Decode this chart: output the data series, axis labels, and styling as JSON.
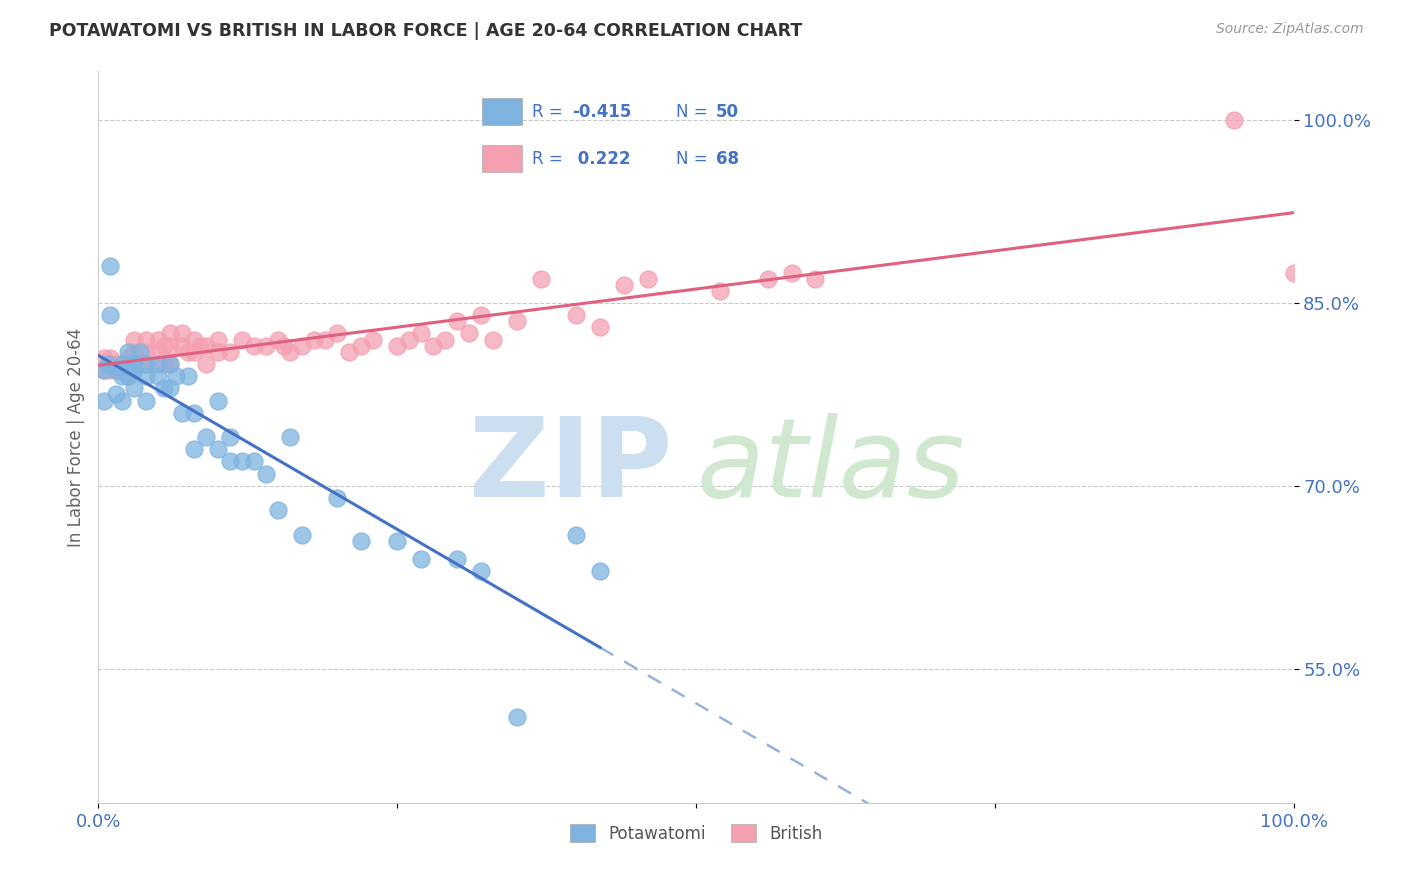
{
  "title": "POTAWATOMI VS BRITISH IN LABOR FORCE | AGE 20-64 CORRELATION CHART",
  "source": "Source: ZipAtlas.com",
  "ylabel": "In Labor Force | Age 20-64",
  "xlim": [
    0,
    1
  ],
  "ylim": [
    0.44,
    1.04
  ],
  "yticks": [
    0.55,
    0.7,
    0.85,
    1.0
  ],
  "ytick_labels": [
    "55.0%",
    "70.0%",
    "85.0%",
    "100.0%"
  ],
  "xticks": [
    0.0,
    0.25,
    0.5,
    0.75,
    1.0
  ],
  "xtick_labels": [
    "0.0%",
    "",
    "",
    "",
    "100.0%"
  ],
  "color_potawatomi": "#7eb3e0",
  "color_british": "#f4a0b0",
  "color_line_potawatomi": "#4472c4",
  "color_line_british": "#e06080",
  "background_color": "#ffffff",
  "potawatomi_x": [
    0.005,
    0.005,
    0.008,
    0.01,
    0.01,
    0.015,
    0.015,
    0.02,
    0.02,
    0.02,
    0.025,
    0.025,
    0.025,
    0.03,
    0.03,
    0.03,
    0.035,
    0.04,
    0.04,
    0.04,
    0.05,
    0.05,
    0.055,
    0.06,
    0.06,
    0.065,
    0.07,
    0.075,
    0.08,
    0.08,
    0.09,
    0.1,
    0.1,
    0.11,
    0.11,
    0.12,
    0.13,
    0.14,
    0.15,
    0.16,
    0.17,
    0.2,
    0.22,
    0.25,
    0.27,
    0.3,
    0.32,
    0.35,
    0.4,
    0.42
  ],
  "potawatomi_y": [
    0.795,
    0.77,
    0.8,
    0.88,
    0.84,
    0.795,
    0.775,
    0.8,
    0.79,
    0.77,
    0.81,
    0.8,
    0.79,
    0.8,
    0.795,
    0.78,
    0.81,
    0.8,
    0.79,
    0.77,
    0.8,
    0.79,
    0.78,
    0.8,
    0.78,
    0.79,
    0.76,
    0.79,
    0.76,
    0.73,
    0.74,
    0.77,
    0.73,
    0.74,
    0.72,
    0.72,
    0.72,
    0.71,
    0.68,
    0.74,
    0.66,
    0.69,
    0.655,
    0.655,
    0.64,
    0.64,
    0.63,
    0.51,
    0.66,
    0.63
  ],
  "british_x": [
    0.005,
    0.005,
    0.01,
    0.01,
    0.015,
    0.015,
    0.02,
    0.02,
    0.025,
    0.025,
    0.03,
    0.03,
    0.03,
    0.04,
    0.04,
    0.04,
    0.05,
    0.05,
    0.055,
    0.055,
    0.06,
    0.06,
    0.06,
    0.07,
    0.07,
    0.075,
    0.08,
    0.08,
    0.085,
    0.09,
    0.09,
    0.1,
    0.1,
    0.11,
    0.12,
    0.13,
    0.14,
    0.15,
    0.155,
    0.16,
    0.17,
    0.18,
    0.19,
    0.2,
    0.21,
    0.22,
    0.23,
    0.25,
    0.26,
    0.27,
    0.28,
    0.29,
    0.3,
    0.31,
    0.32,
    0.33,
    0.35,
    0.37,
    0.4,
    0.42,
    0.44,
    0.46,
    0.52,
    0.56,
    0.58,
    0.6,
    0.95,
    1.0
  ],
  "british_y": [
    0.805,
    0.795,
    0.805,
    0.795,
    0.8,
    0.795,
    0.8,
    0.795,
    0.805,
    0.79,
    0.82,
    0.81,
    0.8,
    0.82,
    0.81,
    0.8,
    0.82,
    0.81,
    0.815,
    0.8,
    0.825,
    0.815,
    0.8,
    0.825,
    0.815,
    0.81,
    0.82,
    0.81,
    0.815,
    0.815,
    0.8,
    0.82,
    0.81,
    0.81,
    0.82,
    0.815,
    0.815,
    0.82,
    0.815,
    0.81,
    0.815,
    0.82,
    0.82,
    0.825,
    0.81,
    0.815,
    0.82,
    0.815,
    0.82,
    0.825,
    0.815,
    0.82,
    0.835,
    0.825,
    0.84,
    0.82,
    0.835,
    0.87,
    0.84,
    0.83,
    0.865,
    0.87,
    0.86,
    0.87,
    0.875,
    0.87,
    1.0,
    0.875
  ],
  "line_pot_x_start": 0.0,
  "line_pot_x_solid_end": 0.42,
  "line_pot_x_end": 1.0,
  "line_brit_x_start": 0.0,
  "line_brit_x_end": 1.0
}
